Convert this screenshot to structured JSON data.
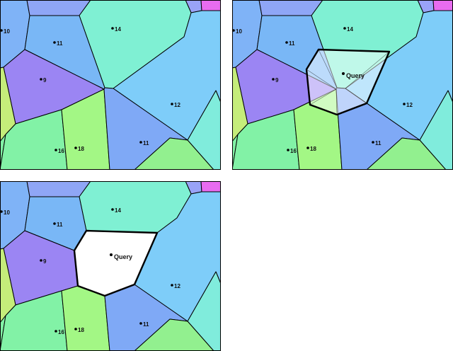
{
  "colors": {
    "c10": "#7fb3f7",
    "c11": "#79b7f6",
    "c14": "#7ff0d3",
    "c9": "#9b85f3",
    "c12": "#7ecdf9",
    "c16": "#82f2a6",
    "c18": "#a3f785",
    "c11b": "#7fa9f6",
    "top_mid": "#8fa6f6",
    "top_right": "#99a3f7",
    "magenta": "#e86cf0",
    "right_edge": "#80ecdc",
    "left_edge": "#c5ed7a",
    "bottom_green": "#92f08f",
    "query_cell": "#ffffff",
    "query_overlay": "#ffffff"
  },
  "panels": [
    {
      "id": "before",
      "show_query": false,
      "labels": {
        "l10": "10",
        "l11": "11",
        "l14": "14",
        "l9": "9",
        "l12": "12",
        "l16": "16",
        "l18": "18",
        "l11b": "11"
      }
    },
    {
      "id": "during",
      "show_query": true,
      "query_label": "Query",
      "labels": {
        "l10": "10",
        "l11": "11",
        "l14": "14",
        "l9": "9",
        "l12": "12",
        "l16": "16",
        "l18": "18",
        "l11b": "11"
      }
    },
    {
      "id": "after",
      "show_query": true,
      "query_label": "Query",
      "labels": {
        "l10": "10",
        "l11": "11",
        "l14": "14",
        "l9": "9",
        "l12": "12",
        "l16": "16",
        "l18": "18",
        "l11b": "11"
      }
    }
  ]
}
